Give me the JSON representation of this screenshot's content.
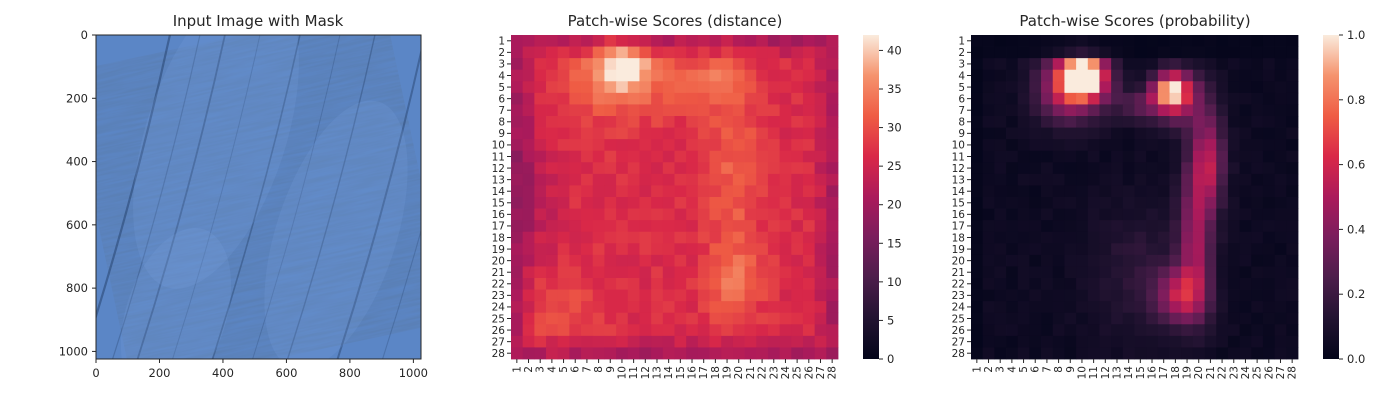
{
  "chart_data": [
    {
      "type": "image",
      "title": "Input Image with Mask",
      "xlabel": "",
      "ylabel": "",
      "xlim": [
        0,
        1024
      ],
      "ylim": [
        1024,
        0
      ],
      "x_ticks": [
        0,
        200,
        400,
        600,
        800,
        1000
      ],
      "y_ticks": [
        0,
        200,
        400,
        600,
        800,
        1000
      ],
      "content": "blue wood-grain texture with diagonal dark streaks",
      "colors": {
        "base": "#5b86c6",
        "light": "#6c98d8",
        "dark": "#2e4f80"
      }
    },
    {
      "type": "heatmap",
      "title": "Patch-wise Scores (distance)",
      "xlabel": "",
      "ylabel": "",
      "grid_size": 28,
      "x_tick_labels": [
        "1",
        "2",
        "3",
        "4",
        "5",
        "6",
        "7",
        "8",
        "9",
        "10",
        "11",
        "12",
        "13",
        "14",
        "15",
        "16",
        "17",
        "18",
        "19",
        "20",
        "21",
        "22",
        "23",
        "24",
        "25",
        "26",
        "27",
        "28"
      ],
      "y_tick_labels": [
        "1",
        "2",
        "3",
        "4",
        "5",
        "6",
        "7",
        "8",
        "9",
        "10",
        "11",
        "12",
        "13",
        "14",
        "15",
        "16",
        "17",
        "18",
        "19",
        "20",
        "21",
        "22",
        "23",
        "24",
        "25",
        "26",
        "27",
        "28"
      ],
      "colormap": "rocket",
      "vmin": 0,
      "vmax": 42,
      "colorbar_ticks": [
        0,
        5,
        10,
        15,
        20,
        25,
        30,
        35,
        40
      ],
      "value_field": "approximately 22 at the border, 26-29 in the interior, peaking near 41 around rows 2-5, columns 9-11; bright vertical ridge near columns 18-20"
    },
    {
      "type": "heatmap",
      "title": "Patch-wise Scores (probability)",
      "xlabel": "",
      "ylabel": "",
      "grid_size": 28,
      "x_tick_labels": [
        "1",
        "2",
        "3",
        "4",
        "5",
        "6",
        "7",
        "8",
        "9",
        "10",
        "11",
        "12",
        "13",
        "14",
        "15",
        "16",
        "17",
        "18",
        "19",
        "20",
        "21",
        "22",
        "23",
        "24",
        "25",
        "26",
        "27",
        "28"
      ],
      "y_tick_labels": [
        "1",
        "2",
        "3",
        "4",
        "5",
        "6",
        "7",
        "8",
        "9",
        "10",
        "11",
        "12",
        "13",
        "14",
        "15",
        "16",
        "17",
        "18",
        "19",
        "20",
        "21",
        "22",
        "23",
        "24",
        "25",
        "26",
        "27",
        "28"
      ],
      "colormap": "rocket",
      "vmin": 0,
      "vmax": 1,
      "colorbar_ticks": [
        "0.0",
        "0.2",
        "0.4",
        "0.6",
        "0.8",
        "1.0"
      ],
      "value_field": "near 0 over most of the grid; hot spots up to ~1.0 at rows 2-5, columns 8-11 and ~0.7 at rows 4-6, columns 16-18; a vertical band of ~0.3-0.6 near columns 18-21 from row 8 to row 24"
    }
  ]
}
